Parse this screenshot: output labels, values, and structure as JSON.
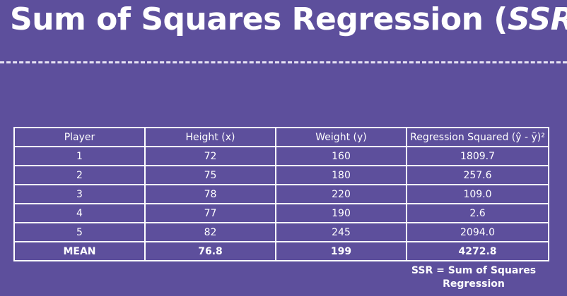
{
  "title": {
    "main": "Sum of Squares Regression (",
    "abbr": "SSR",
    "close": ")"
  },
  "table": {
    "headers": [
      "Player",
      "Height (x)",
      "Weight (y)",
      "Regression Squared (ŷ - ȳ)²"
    ],
    "rows": [
      [
        "1",
        "72",
        "160",
        "1809.7"
      ],
      [
        "2",
        "75",
        "180",
        "257.6"
      ],
      [
        "3",
        "78",
        "220",
        "109.0"
      ],
      [
        "4",
        "77",
        "190",
        "2.6"
      ],
      [
        "5",
        "82",
        "245",
        "2094.0"
      ]
    ],
    "mean": [
      "MEAN",
      "76.8",
      "199",
      "4272.8"
    ]
  },
  "note": {
    "line1": "SSR = Sum of Squares",
    "line2": "Regression"
  }
}
